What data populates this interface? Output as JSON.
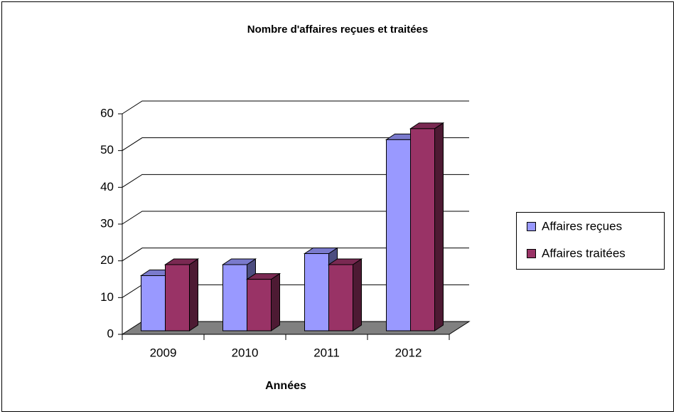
{
  "chart_data": {
    "type": "bar3d",
    "title": "Nombre d'affaires reçues et traitées",
    "x_label": "Années",
    "categories": [
      "2009",
      "2010",
      "2011",
      "2012"
    ],
    "series": [
      {
        "name": "Affaires reçues",
        "color": "#9999ff",
        "values": [
          15,
          18,
          21,
          52
        ]
      },
      {
        "name": "Affaires traitées",
        "color": "#993366",
        "values": [
          18,
          14,
          18,
          55
        ]
      }
    ],
    "ylim": [
      0,
      60
    ],
    "yticks": [
      0,
      10,
      20,
      30,
      40,
      50,
      60
    ],
    "grid": true,
    "legend": "right"
  }
}
